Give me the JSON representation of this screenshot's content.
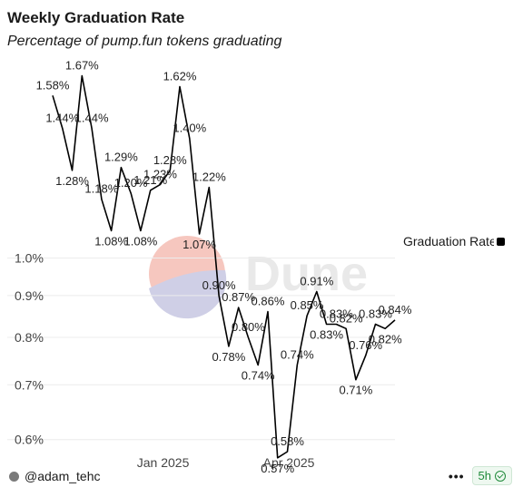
{
  "header": {
    "title": "Weekly Graduation Rate",
    "subtitle": "Percentage of pump.fun tokens graduating"
  },
  "watermark": {
    "text": "Dune"
  },
  "legend": {
    "label": "Graduation Rate",
    "color": "#000000"
  },
  "footer": {
    "author": "@adam_tehc",
    "more": "•••",
    "age": "5h"
  },
  "chart_data": {
    "type": "line",
    "title": "Weekly Graduation Rate",
    "subtitle": "Percentage of pump.fun tokens graduating",
    "xlabel": "",
    "ylabel": "",
    "scale": "log",
    "ylim": [
      0.58,
      1.72
    ],
    "y_ticks": [
      "1.0%",
      "0.9%",
      "0.8%",
      "0.7%",
      "0.6%"
    ],
    "y_tick_values": [
      1.0,
      0.9,
      0.8,
      0.7,
      0.6
    ],
    "x_ticks": [
      {
        "label": "Jan 2025",
        "date": "2025-01-01"
      },
      {
        "label": "Apr 2025",
        "date": "2025-04-01"
      }
    ],
    "grid": true,
    "legend_position": "right",
    "series": [
      {
        "name": "Graduation Rate",
        "color": "#000000",
        "points": [
          {
            "date": "2024-10-14",
            "value": 1.58,
            "label": "1.58%"
          },
          {
            "date": "2024-10-21",
            "value": 1.44,
            "label": "1.44%"
          },
          {
            "date": "2024-10-28",
            "value": 1.28,
            "label": "1.28%"
          },
          {
            "date": "2024-11-04",
            "value": 1.67,
            "label": "1.67%"
          },
          {
            "date": "2024-11-11",
            "value": 1.44,
            "label": "1.44%"
          },
          {
            "date": "2024-11-18",
            "value": 1.18,
            "label": "1.18%"
          },
          {
            "date": "2024-11-25",
            "value": 1.08,
            "label": "1.08%"
          },
          {
            "date": "2024-12-02",
            "value": 1.29,
            "label": "1.29%"
          },
          {
            "date": "2024-12-09",
            "value": 1.2,
            "label": "1.20%"
          },
          {
            "date": "2024-12-16",
            "value": 1.08,
            "label": "1.08%"
          },
          {
            "date": "2024-12-23",
            "value": 1.21,
            "label": "1.21%"
          },
          {
            "date": "2024-12-30",
            "value": 1.23,
            "label": "1.23%"
          },
          {
            "date": "2025-01-06",
            "value": 1.28,
            "label": "1.28%"
          },
          {
            "date": "2025-01-13",
            "value": 1.62,
            "label": "1.62%"
          },
          {
            "date": "2025-01-20",
            "value": 1.4,
            "label": "1.40%"
          },
          {
            "date": "2025-01-27",
            "value": 1.07,
            "label": "1.07%"
          },
          {
            "date": "2025-02-03",
            "value": 1.22,
            "label": "1.22%"
          },
          {
            "date": "2025-02-10",
            "value": 0.9,
            "label": "0.90%"
          },
          {
            "date": "2025-02-17",
            "value": 0.78,
            "label": "0.78%"
          },
          {
            "date": "2025-02-24",
            "value": 0.87,
            "label": "0.87%"
          },
          {
            "date": "2025-03-03",
            "value": 0.8,
            "label": "0.80%"
          },
          {
            "date": "2025-03-10",
            "value": 0.74,
            "label": "0.74%"
          },
          {
            "date": "2025-03-17",
            "value": 0.86,
            "label": "0.86%"
          },
          {
            "date": "2025-03-24",
            "value": 0.57,
            "label": "0.57%"
          },
          {
            "date": "2025-03-31",
            "value": 0.58,
            "label": "0.58%"
          },
          {
            "date": "2025-04-07",
            "value": 0.74,
            "label": "0.74%"
          },
          {
            "date": "2025-04-14",
            "value": 0.85,
            "label": "0.85%"
          },
          {
            "date": "2025-04-21",
            "value": 0.91,
            "label": "0.91%"
          },
          {
            "date": "2025-04-28",
            "value": 0.83,
            "label": "0.83%"
          },
          {
            "date": "2025-05-05",
            "value": 0.83,
            "label": "0.83%"
          },
          {
            "date": "2025-05-12",
            "value": 0.82,
            "label": "0.82%"
          },
          {
            "date": "2025-05-19",
            "value": 0.71,
            "label": "0.71%"
          },
          {
            "date": "2025-05-26",
            "value": 0.76,
            "label": "0.76%"
          },
          {
            "date": "2025-06-02",
            "value": 0.83,
            "label": "0.83%"
          },
          {
            "date": "2025-06-09",
            "value": 0.82,
            "label": "0.82%"
          },
          {
            "date": "2025-06-16",
            "value": 0.84,
            "label": "0.84%"
          }
        ]
      }
    ]
  }
}
